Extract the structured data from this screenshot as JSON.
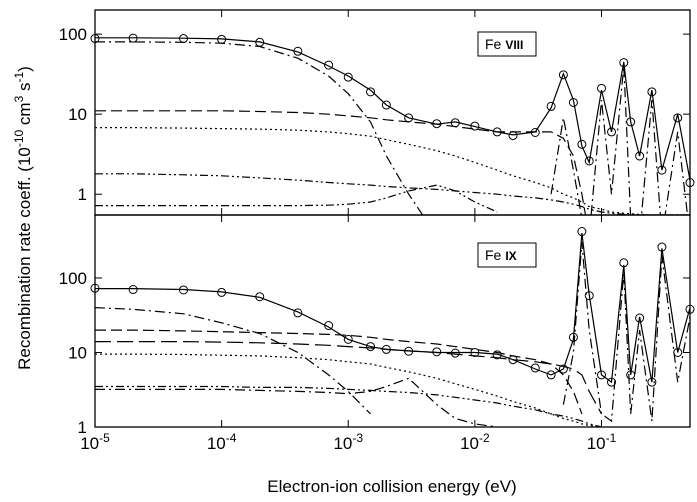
{
  "axis_labels": {
    "x": "Electron-ion collision energy (eV)",
    "y": [
      "Recombination rate coeff. (10",
      "-10",
      " cm",
      "3",
      " s",
      "-1",
      ")"
    ]
  },
  "chart_data": [
    {
      "type": "line",
      "ion": "Fe",
      "stage": "VIII",
      "log_x": true,
      "log_y": true,
      "x": [
        1e-05,
        2e-05,
        5e-05,
        0.0001,
        0.0002,
        0.0004,
        0.0007,
        0.001,
        0.0015,
        0.002,
        0.003,
        0.005,
        0.007,
        0.01,
        0.015,
        0.02,
        0.03,
        0.04,
        0.05,
        0.06,
        0.07,
        0.08,
        0.1,
        0.12,
        0.15,
        0.17,
        0.2,
        0.25,
        0.3,
        0.4,
        0.5
      ],
      "xlim": [
        1e-05,
        0.5
      ],
      "xticks": [
        {
          "value": 1e-05,
          "label": "10",
          "exponent": "-5"
        },
        {
          "value": 0.0001,
          "label": "10",
          "exponent": "-4"
        },
        {
          "value": 0.001,
          "label": "10",
          "exponent": "-3"
        },
        {
          "value": 0.01,
          "label": "10",
          "exponent": "-2"
        },
        {
          "value": 0.1,
          "label": "10",
          "exponent": "-1"
        }
      ],
      "ylim": [
        0.55,
        200
      ],
      "yticks": [
        1,
        10,
        100
      ],
      "series": [
        {
          "style": "solid",
          "color": "#000000",
          "values": [
            90,
            90,
            89,
            87,
            80,
            60,
            40,
            30,
            20,
            13,
            9,
            7.5,
            8,
            7,
            6,
            5.5,
            6,
            12,
            32,
            15,
            4,
            2.5,
            20,
            6,
            45,
            8,
            3,
            20,
            2,
            10,
            1.5
          ]
        },
        {
          "style": "circle",
          "color": "#000000",
          "values": [
            88,
            89,
            88,
            86,
            79,
            61,
            41,
            29,
            19,
            13,
            9,
            7.6,
            7.8,
            7.1,
            6,
            5.4,
            5.9,
            12.5,
            31,
            14,
            4.2,
            2.6,
            21,
            6,
            44,
            8,
            3,
            19,
            2,
            9,
            1.4
          ]
        },
        {
          "style": "dashdot",
          "color": "#000000",
          "values": [
            80,
            80,
            79,
            77,
            70,
            50,
            30,
            18,
            8,
            3,
            1,
            0.3,
            null,
            null,
            null,
            null,
            null,
            1,
            9,
            2,
            0.5,
            0.3,
            15,
            1,
            40,
            0.5,
            0.3,
            15,
            0.3,
            6,
            0.3
          ]
        },
        {
          "style": "dashed",
          "color": "#000000",
          "values": [
            11,
            11,
            11,
            11,
            10.8,
            10.5,
            10,
            9.5,
            9,
            8.5,
            8,
            7.5,
            7,
            6.5,
            6,
            6,
            6,
            6,
            5,
            3,
            1,
            0.3,
            null,
            null,
            null,
            null,
            null,
            null,
            null,
            null,
            null
          ]
        },
        {
          "style": "dotted",
          "color": "#000000",
          "values": [
            6.8,
            6.8,
            6.7,
            6.6,
            6.5,
            6.3,
            6,
            5.7,
            5.3,
            4.8,
            4.2,
            3.5,
            3,
            2.5,
            2,
            1.7,
            1.4,
            1.2,
            1,
            0.9,
            0.8,
            0.7,
            0.65,
            0.6,
            0.58,
            0.57,
            0.56,
            0.55,
            0.55,
            0.55,
            0.55
          ]
        },
        {
          "style": "dashdotdot",
          "color": "#000000",
          "values": [
            1.8,
            1.8,
            1.75,
            1.7,
            1.6,
            1.5,
            1.4,
            1.35,
            1.3,
            1.25,
            1.2,
            1.15,
            1.1,
            1.05,
            1,
            0.95,
            0.9,
            0.85,
            0.8,
            0.75,
            0.7,
            0.65,
            0.6,
            0.58,
            0.56,
            0.55,
            0.55,
            0.55,
            0.55,
            0.55,
            0.55
          ]
        },
        {
          "style": "dashdotdot",
          "color": "#000000",
          "values": [
            0.72,
            0.72,
            0.72,
            0.72,
            0.72,
            0.72,
            0.73,
            0.75,
            0.8,
            0.9,
            1.1,
            1.3,
            1.1,
            0.8,
            0.6,
            null,
            null,
            null,
            null,
            null,
            null,
            null,
            null,
            null,
            null,
            null,
            null,
            null,
            null,
            null,
            null
          ]
        }
      ]
    },
    {
      "type": "line",
      "ion": "Fe",
      "stage": "IX",
      "log_x": true,
      "log_y": true,
      "x": [
        1e-05,
        2e-05,
        5e-05,
        0.0001,
        0.0002,
        0.0004,
        0.0007,
        0.001,
        0.0015,
        0.002,
        0.003,
        0.005,
        0.007,
        0.01,
        0.015,
        0.02,
        0.03,
        0.04,
        0.05,
        0.06,
        0.07,
        0.08,
        0.1,
        0.12,
        0.15,
        0.17,
        0.2,
        0.25,
        0.3,
        0.4,
        0.5
      ],
      "xlim": [
        1e-05,
        0.5
      ],
      "xticks": [
        {
          "value": 1e-05,
          "label": "10",
          "exponent": "-5"
        },
        {
          "value": 0.0001,
          "label": "10",
          "exponent": "-4"
        },
        {
          "value": 0.001,
          "label": "10",
          "exponent": "-3"
        },
        {
          "value": 0.01,
          "label": "10",
          "exponent": "-2"
        },
        {
          "value": 0.1,
          "label": "10",
          "exponent": "-1"
        }
      ],
      "ylim": [
        1,
        700
      ],
      "yticks": [
        1,
        10,
        100
      ],
      "series": [
        {
          "style": "solid",
          "color": "#000000",
          "values": [
            72,
            72,
            70,
            65,
            55,
            35,
            22,
            15,
            12,
            11,
            10.5,
            10,
            10,
            10,
            9.5,
            8,
            6,
            5,
            6,
            15,
            400,
            60,
            5,
            4,
            150,
            5,
            30,
            4,
            250,
            10,
            40
          ]
        },
        {
          "style": "circle",
          "color": "#000000",
          "values": [
            73,
            70,
            69,
            64,
            56,
            34,
            23,
            15,
            12,
            11,
            10.4,
            10.2,
            9.8,
            10,
            9.3,
            8,
            6.2,
            5,
            6,
            16,
            420,
            58,
            5,
            4,
            160,
            5,
            29,
            4,
            260,
            10,
            38
          ]
        },
        {
          "style": "dashdot",
          "color": "#000000",
          "values": [
            40,
            38,
            33,
            25,
            18,
            10,
            5,
            3,
            1.5,
            null,
            null,
            null,
            null,
            null,
            null,
            null,
            null,
            null,
            2,
            10,
            300,
            20,
            1.5,
            1.2,
            120,
            1.5,
            20,
            1.2,
            200,
            4,
            30
          ]
        },
        {
          "style": "dashed",
          "color": "#000000",
          "values": [
            20,
            20,
            19.5,
            19,
            18.5,
            18,
            17.5,
            17,
            16,
            15,
            14,
            13,
            12,
            11,
            10,
            9,
            8,
            7,
            5,
            3,
            1.5,
            null,
            null,
            null,
            null,
            null,
            null,
            null,
            null,
            null,
            null
          ]
        },
        {
          "style": "longdash",
          "color": "#000000",
          "values": [
            14,
            14,
            14,
            13.8,
            13.5,
            13,
            12.5,
            12,
            11.5,
            11,
            10.5,
            10,
            9.5,
            9,
            8.5,
            8,
            7.5,
            7,
            6.5,
            6,
            5,
            3,
            1.5,
            null,
            null,
            null,
            null,
            null,
            null,
            null,
            null
          ]
        },
        {
          "style": "dotted",
          "color": "#000000",
          "values": [
            9.5,
            9.5,
            9.4,
            9.2,
            9,
            8.5,
            8,
            7.5,
            7,
            6.3,
            5.5,
            4.5,
            3.8,
            3.2,
            2.6,
            2.2,
            1.8,
            1.5,
            1.3,
            1.2,
            1.1,
            1.05,
            1,
            null,
            null,
            null,
            null,
            null,
            null,
            null,
            null
          ]
        },
        {
          "style": "dashdotdot",
          "color": "#000000",
          "values": [
            3.5,
            3.5,
            3.5,
            3.5,
            3.4,
            3.4,
            3.3,
            3.2,
            3.1,
            3,
            2.9,
            2.7,
            2.5,
            2.3,
            2.1,
            1.9,
            1.7,
            1.5,
            1.4,
            1.3,
            1.2,
            1.1,
            1,
            null,
            null,
            null,
            null,
            null,
            null,
            null,
            null
          ]
        },
        {
          "style": "dashdot",
          "color": "#000000",
          "values": [
            3.2,
            3.2,
            3.2,
            3.2,
            3.1,
            3,
            2.9,
            2.8,
            3,
            3.5,
            4.5,
            2,
            1.3,
            1.1,
            1,
            null,
            null,
            null,
            null,
            null,
            null,
            null,
            null,
            null,
            null,
            null,
            null,
            null,
            null,
            null,
            null
          ]
        }
      ]
    }
  ]
}
